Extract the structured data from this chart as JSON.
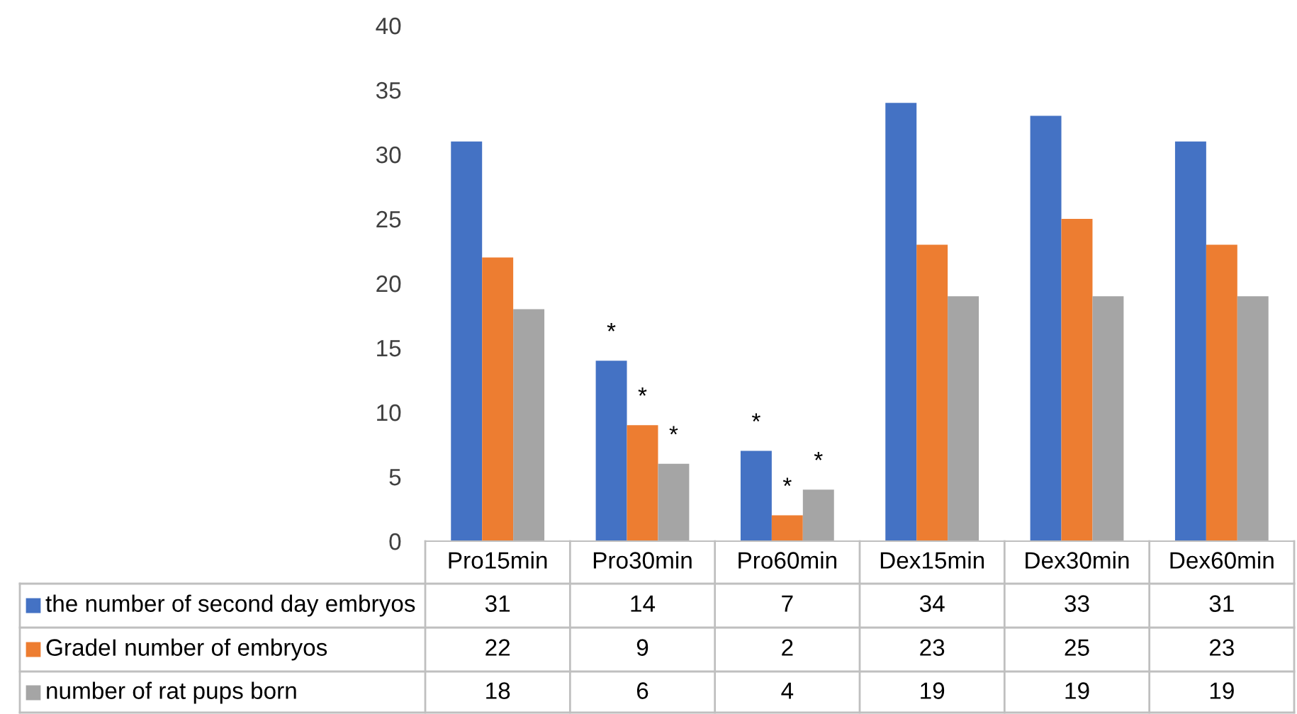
{
  "chart_data": {
    "type": "bar",
    "categories": [
      "Pro15min",
      "Pro30min",
      "Pro60min",
      "Dex15min",
      "Dex30min",
      "Dex60min"
    ],
    "series": [
      {
        "name": "the number of second day embryos",
        "color": "#4472c4",
        "values": [
          31,
          14,
          7,
          34,
          33,
          31
        ]
      },
      {
        "name": "GradeI number of embryos",
        "color": "#ed7d31",
        "values": [
          22,
          9,
          2,
          23,
          25,
          23
        ]
      },
      {
        "name": "number of rat pups born",
        "color": "#a5a5a5",
        "values": [
          18,
          6,
          4,
          19,
          19,
          19
        ]
      }
    ],
    "ylim": [
      0,
      40
    ],
    "yticks": [
      0,
      5,
      10,
      15,
      20,
      25,
      30,
      35,
      40
    ],
    "data_labels": true,
    "legend": "bottom",
    "grid": false,
    "annotations": [
      {
        "text": "*",
        "y": 14
      },
      {
        "text": "*",
        "y": 9
      },
      {
        "text": "*",
        "y": 6
      },
      {
        "text": "*",
        "y": 7
      },
      {
        "text": "*",
        "y": 2
      },
      {
        "text": "*",
        "y": 4
      }
    ]
  }
}
